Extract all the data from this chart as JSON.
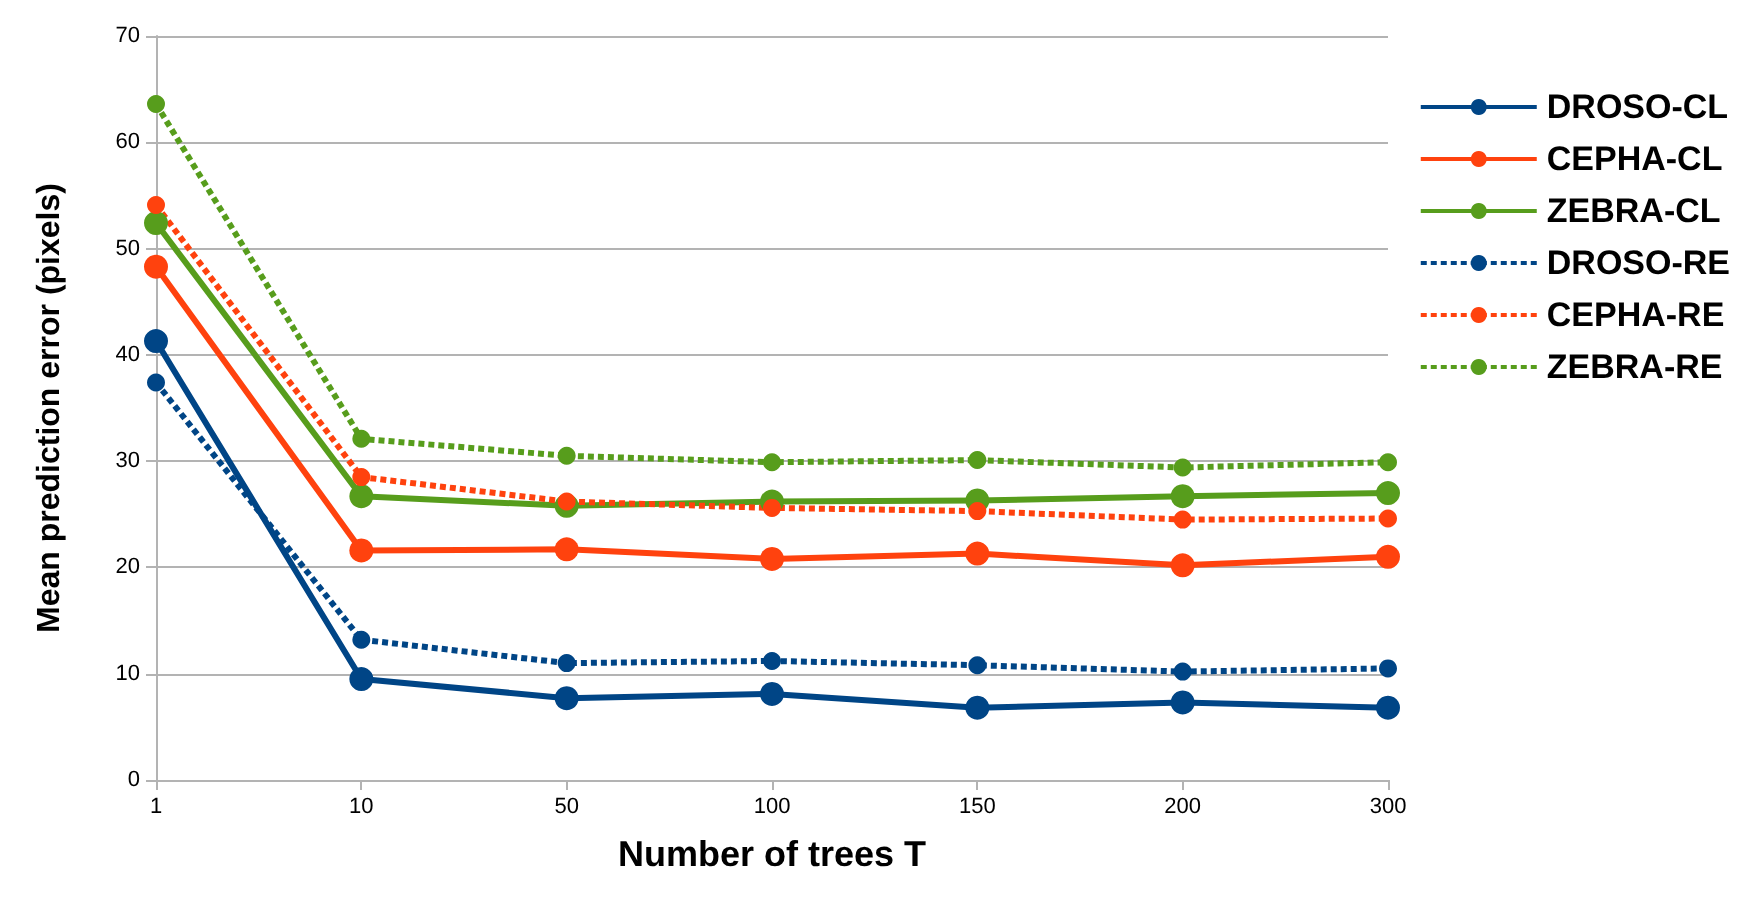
{
  "chart_data": {
    "type": "line",
    "xlabel": "Number of trees T",
    "ylabel": "Mean prediction error (pixels)",
    "categories": [
      "1",
      "10",
      "50",
      "100",
      "150",
      "200",
      "300"
    ],
    "ylim": [
      0,
      70
    ],
    "yticks": [
      0,
      10,
      20,
      30,
      40,
      50,
      60,
      70
    ],
    "grid": "y",
    "legend": "right",
    "marker": "circle",
    "series": [
      {
        "name": "DROSO-CL",
        "color": "#004586",
        "line_style": "solid",
        "values": [
          41.3,
          9.5,
          7.7,
          8.1,
          6.8,
          7.3,
          6.8
        ]
      },
      {
        "name": "CEPHA-CL",
        "color": "#ff420e",
        "line_style": "solid",
        "values": [
          48.3,
          21.6,
          21.7,
          20.8,
          21.3,
          20.2,
          21.0
        ]
      },
      {
        "name": "ZEBRA-CL",
        "color": "#579d1c",
        "line_style": "solid",
        "values": [
          52.4,
          26.7,
          25.8,
          26.2,
          26.3,
          26.7,
          27.0
        ]
      },
      {
        "name": "DROSO-RE",
        "color": "#004586",
        "line_style": "dotted",
        "values": [
          37.4,
          13.2,
          11.0,
          11.2,
          10.8,
          10.2,
          10.5
        ]
      },
      {
        "name": "CEPHA-RE",
        "color": "#ff420e",
        "line_style": "dotted",
        "values": [
          54.1,
          28.5,
          26.2,
          25.6,
          25.3,
          24.5,
          24.6
        ]
      },
      {
        "name": "ZEBRA-RE",
        "color": "#579d1c",
        "line_style": "dotted",
        "values": [
          63.6,
          32.1,
          30.5,
          29.9,
          30.1,
          29.4,
          29.9
        ]
      }
    ]
  }
}
